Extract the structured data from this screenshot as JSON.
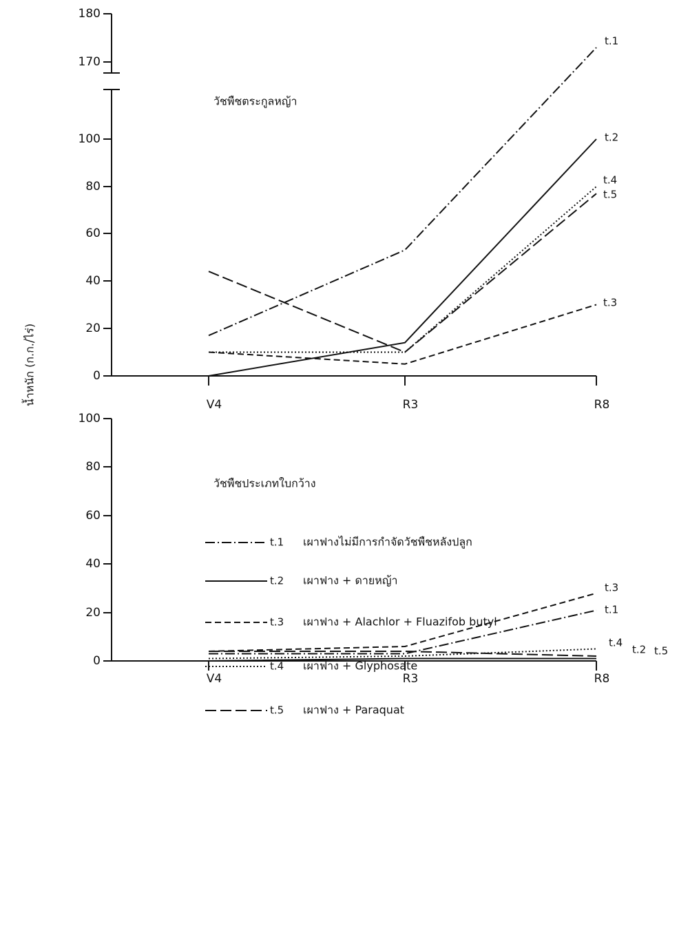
{
  "y_axis_label": "น้ำหนัก (ก.ก./ไร่)",
  "legend_labels": [
    "เผาฟางไม่มีการกำจัดวัชพืชหลังปลูก",
    "เผาฟาง + ดายหญ้า",
    "เผาฟาง + Alachlor + Fluazifob butyl",
    "เผาฟาง + Glyphosate",
    "เผาฟาง + Paraquat"
  ],
  "chart_data": [
    {
      "type": "line",
      "title": "วัชพืชตระกูลหญ้า",
      "categories": [
        "V4",
        "R3",
        "R8"
      ],
      "ylim": [
        0,
        180
      ],
      "yticks": [
        0,
        20,
        40,
        60,
        80,
        100,
        170,
        180
      ],
      "axis_break": true,
      "series": [
        {
          "name": "t.1",
          "color": "#111111",
          "style": "dashdot",
          "values": [
            17,
            53,
            173
          ]
        },
        {
          "name": "t.2",
          "color": "#111111",
          "style": "solid",
          "values": [
            0,
            14,
            100
          ]
        },
        {
          "name": "t.3",
          "color": "#111111",
          "style": "dashed",
          "values": [
            10,
            5,
            30
          ]
        },
        {
          "name": "t.4",
          "color": "#111111",
          "style": "dotted",
          "values": [
            10,
            10,
            80
          ]
        },
        {
          "name": "t.5",
          "color": "#111111",
          "style": "longdash",
          "values": [
            44,
            10,
            77
          ]
        }
      ]
    },
    {
      "type": "line",
      "title": "วัชพืชประเภทใบกว้าง",
      "categories": [
        "V4",
        "R3",
        "R8"
      ],
      "ylim": [
        0,
        100
      ],
      "yticks": [
        0,
        20,
        40,
        60,
        80,
        100
      ],
      "axis_break": false,
      "series": [
        {
          "name": "t.1",
          "color": "#111111",
          "style": "dashdot",
          "values": [
            3,
            3,
            21
          ]
        },
        {
          "name": "t.2",
          "color": "#111111",
          "style": "solid",
          "values": [
            0,
            1,
            1
          ]
        },
        {
          "name": "t.3",
          "color": "#111111",
          "style": "dashed",
          "values": [
            4,
            6,
            28
          ]
        },
        {
          "name": "t.4",
          "color": "#111111",
          "style": "dotted",
          "values": [
            1,
            2,
            5
          ]
        },
        {
          "name": "t.5",
          "color": "#111111",
          "style": "longdash",
          "values": [
            4,
            4,
            2
          ]
        }
      ]
    }
  ]
}
